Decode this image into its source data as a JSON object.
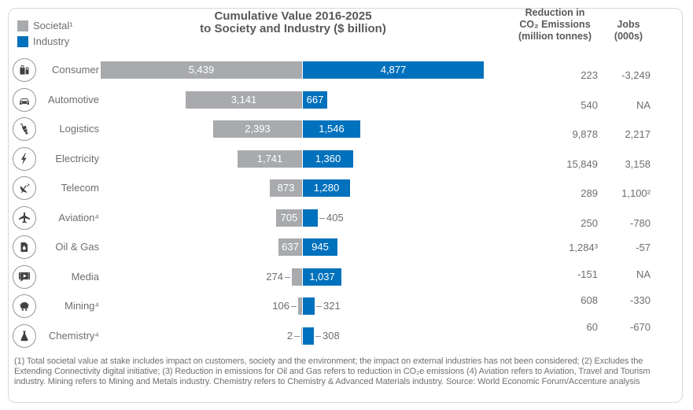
{
  "legend": {
    "items": [
      {
        "label": "Societal¹",
        "color": "#a8aaad"
      },
      {
        "label": "Industry",
        "color": "#0071bc"
      }
    ]
  },
  "title": {
    "line1": "Cumulative Value 2016-2025",
    "line2": "to Society and Industry ($ billion)"
  },
  "columns": {
    "co2": {
      "lines": [
        "Reduction in",
        "CO₂ Emissions",
        "(million tonnes)"
      ]
    },
    "jobs": {
      "lines": [
        "Jobs",
        "(000s)"
      ]
    }
  },
  "chart_data": {
    "type": "bar",
    "orientation": "horizontal",
    "diverging": true,
    "unit": "$ billion",
    "title": "Cumulative Value 2016-2025 to Society and Industry ($ billion)",
    "legend_position": "top-left",
    "grid": false,
    "series": [
      {
        "name": "Societal",
        "color": "#a8aaad"
      },
      {
        "name": "Industry",
        "color": "#0071bc"
      }
    ],
    "categories": [
      "Consumer",
      "Automotive",
      "Logistics",
      "Electricity",
      "Telecom",
      "Aviation",
      "Oil & Gas",
      "Media",
      "Mining",
      "Chemistry"
    ],
    "rows": [
      {
        "label": "Consumer",
        "icon": "shopping-bags-icon",
        "societal": 5439,
        "societal_label": "5,439",
        "industry": 4877,
        "industry_label": "4,877",
        "co2": "223",
        "jobs": "-3,249"
      },
      {
        "label": "Automotive",
        "icon": "car-icon",
        "societal": 3141,
        "societal_label": "3,141",
        "industry": 667,
        "industry_label": "667",
        "co2": "540",
        "jobs": "NA"
      },
      {
        "label": "Logistics",
        "icon": "hand-truck-icon",
        "societal": 2393,
        "societal_label": "2,393",
        "industry": 1546,
        "industry_label": "1,546",
        "co2": "9,878",
        "jobs": "2,217"
      },
      {
        "label": "Electricity",
        "icon": "lightning-bolt-icon",
        "societal": 1741,
        "societal_label": "1,741",
        "industry": 1360,
        "industry_label": "1,360",
        "co2": "15,849",
        "jobs": "3,158"
      },
      {
        "label": "Telecom",
        "icon": "satellite-dish-icon",
        "societal": 873,
        "societal_label": "873",
        "industry": 1280,
        "industry_label": "1,280",
        "co2": "289",
        "jobs": "1,100²"
      },
      {
        "label": "Aviation⁴",
        "icon": "airplane-icon",
        "societal": 705,
        "societal_label": "705",
        "industry": 405,
        "industry_label": "405",
        "co2": "250",
        "jobs": "-780"
      },
      {
        "label": "Oil & Gas",
        "icon": "oil-barrel-icon",
        "societal": 637,
        "societal_label": "637",
        "industry": 945,
        "industry_label": "945",
        "co2": "1,284³",
        "jobs": "-57"
      },
      {
        "label": "Media",
        "icon": "media-play-icon",
        "societal": 274,
        "societal_label": "274",
        "industry": 1037,
        "industry_label": "1,037",
        "co2": "-151",
        "jobs": "NA"
      },
      {
        "label": "Mining⁴",
        "icon": "mine-cart-icon",
        "societal": 106,
        "societal_label": "106",
        "industry": 321,
        "industry_label": "321",
        "co2": "608",
        "jobs": "-330"
      },
      {
        "label": "Chemistry⁴",
        "icon": "chemistry-flask-icon",
        "societal": 2,
        "societal_label": "2",
        "industry": 308,
        "industry_label": "308",
        "co2": "60",
        "jobs": "-670"
      }
    ]
  },
  "footnote": "(1) Total societal value at stake includes impact on customers, society and the environment; the impact on external industries has not been considered; (2) Excludes the Extending Connectivity digital initiative; (3) Reduction in emissions for Oil and Gas refers to reduction in CO₂e emissions (4) Aviation refers to Aviation, Travel and Tourism industry. Mining refers to Mining and Metals industry. Chemistry refers to Chemistry & Advanced Materials industry. Source: World Economic Forum/Accenture analysis"
}
